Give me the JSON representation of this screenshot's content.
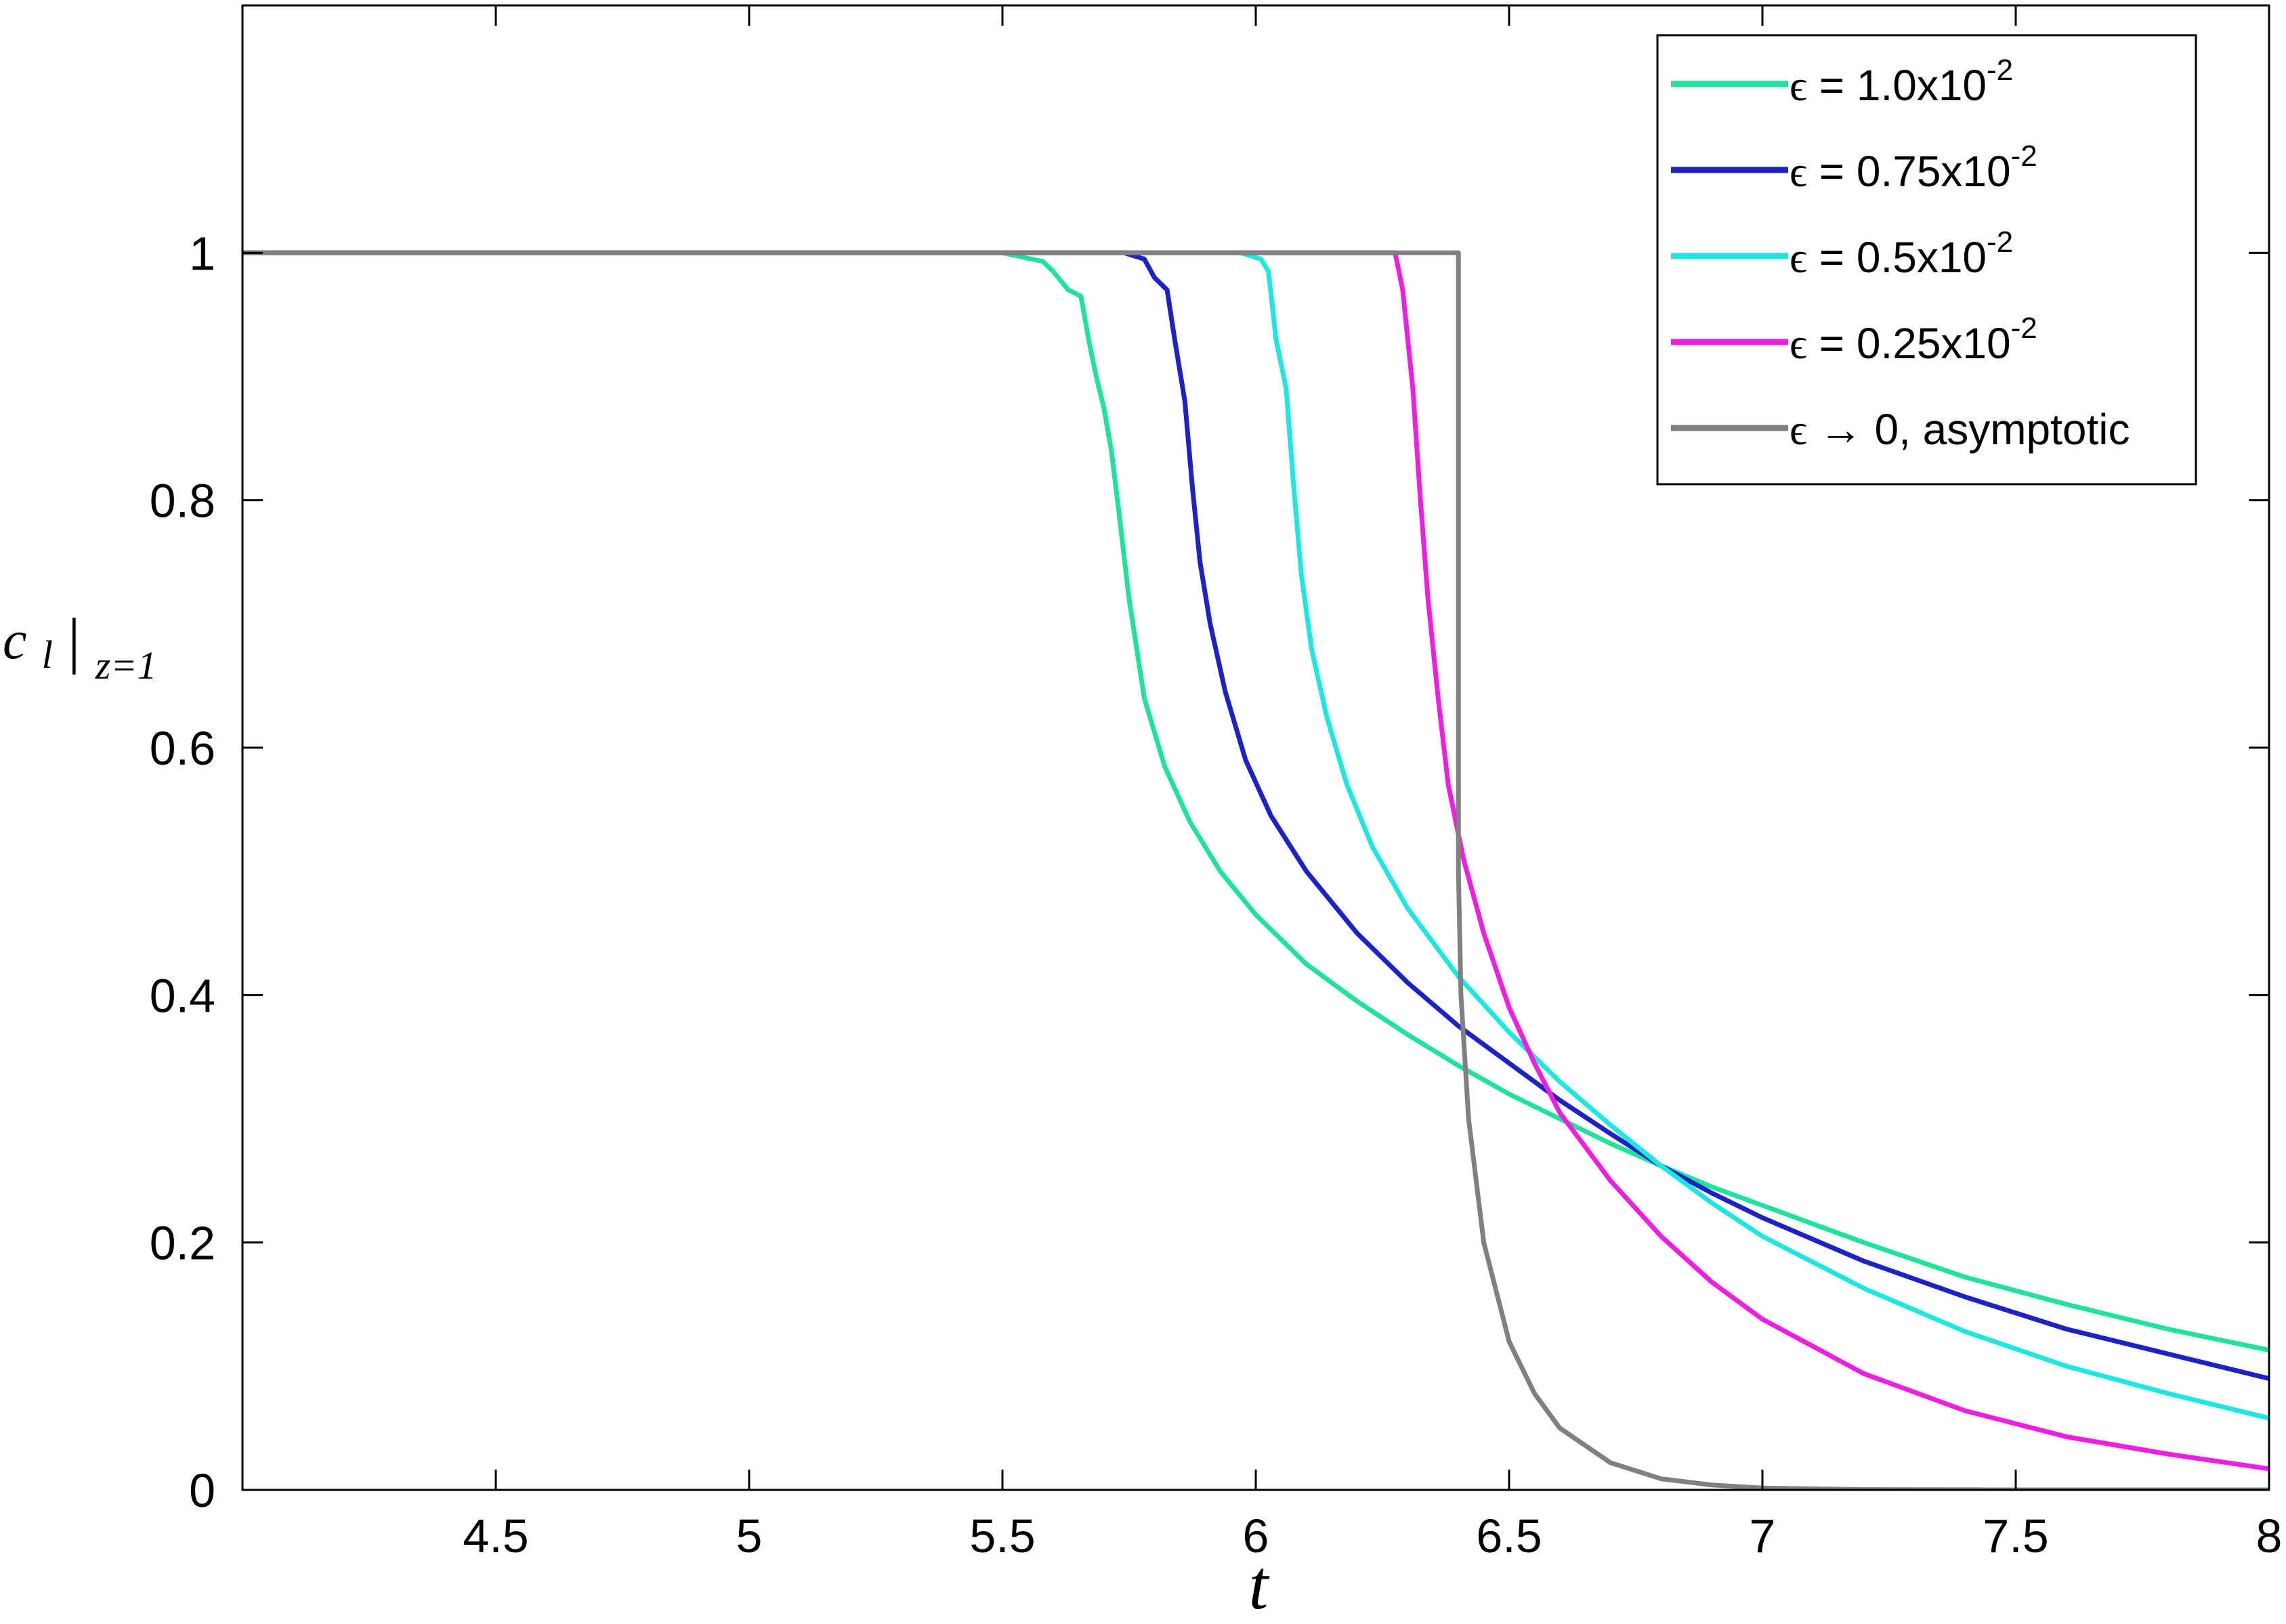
{
  "chart_data": {
    "type": "line",
    "xlabel": "t",
    "ylabel": {
      "main": "c",
      "sub": "l",
      "bar": "|",
      "eval": "z=1"
    },
    "xlim": [
      4.0,
      8.0
    ],
    "ylim": [
      0,
      1.2
    ],
    "xticks": [
      4.5,
      5,
      5.5,
      6,
      6.5,
      7,
      7.5,
      8
    ],
    "xtick_labels": [
      "4.5",
      "5",
      "5.5",
      "6",
      "6.5",
      "7",
      "7.5",
      "8"
    ],
    "yticks": [
      0,
      0.2,
      0.4,
      0.6,
      0.8,
      1
    ],
    "ytick_labels": [
      "0",
      "0.2",
      "0.4",
      "0.6",
      "0.8",
      "1"
    ],
    "grid": false,
    "legend_position": "top-right",
    "series": [
      {
        "name": "ϵ = 1.0x10-2",
        "legend": {
          "symbol": "ϵ",
          "text": " = 1.0x10",
          "exp": "-2"
        },
        "color": "#1fe39a",
        "points": [
          [
            4.0,
            1
          ],
          [
            5.5,
            1
          ],
          [
            5.58,
            0.993
          ],
          [
            5.6,
            0.985
          ],
          [
            5.63,
            0.97
          ],
          [
            5.655,
            0.965
          ],
          [
            5.67,
            0.93
          ],
          [
            5.685,
            0.9
          ],
          [
            5.7,
            0.875
          ],
          [
            5.715,
            0.84
          ],
          [
            5.73,
            0.79
          ],
          [
            5.75,
            0.72
          ],
          [
            5.78,
            0.64
          ],
          [
            5.82,
            0.585
          ],
          [
            5.87,
            0.54
          ],
          [
            5.93,
            0.5
          ],
          [
            6.0,
            0.465
          ],
          [
            6.1,
            0.425
          ],
          [
            6.2,
            0.395
          ],
          [
            6.3,
            0.368
          ],
          [
            6.4,
            0.343
          ],
          [
            6.5,
            0.32
          ],
          [
            6.6,
            0.3
          ],
          [
            6.7,
            0.28
          ],
          [
            6.8,
            0.262
          ],
          [
            6.9,
            0.245
          ],
          [
            7.0,
            0.23
          ],
          [
            7.2,
            0.2
          ],
          [
            7.4,
            0.172
          ],
          [
            7.6,
            0.15
          ],
          [
            7.8,
            0.13
          ],
          [
            8.0,
            0.113
          ]
        ]
      },
      {
        "name": "ϵ = 0.75x10-2",
        "legend": {
          "symbol": "ϵ",
          "text": " = 0.75x10",
          "exp": "-2"
        },
        "color": "#1c22c8",
        "points": [
          [
            4.0,
            1
          ],
          [
            5.74,
            1
          ],
          [
            5.78,
            0.995
          ],
          [
            5.8,
            0.98
          ],
          [
            5.825,
            0.97
          ],
          [
            5.84,
            0.93
          ],
          [
            5.86,
            0.88
          ],
          [
            5.875,
            0.81
          ],
          [
            5.89,
            0.75
          ],
          [
            5.91,
            0.7
          ],
          [
            5.94,
            0.645
          ],
          [
            5.98,
            0.59
          ],
          [
            6.03,
            0.545
          ],
          [
            6.1,
            0.5
          ],
          [
            6.2,
            0.45
          ],
          [
            6.3,
            0.41
          ],
          [
            6.4,
            0.375
          ],
          [
            6.5,
            0.345
          ],
          [
            6.6,
            0.315
          ],
          [
            6.7,
            0.288
          ],
          [
            6.8,
            0.262
          ],
          [
            6.9,
            0.24
          ],
          [
            7.0,
            0.22
          ],
          [
            7.2,
            0.185
          ],
          [
            7.4,
            0.156
          ],
          [
            7.6,
            0.13
          ],
          [
            7.8,
            0.11
          ],
          [
            8.0,
            0.09
          ]
        ]
      },
      {
        "name": "ϵ = 0.5x10-2",
        "legend": {
          "symbol": "ϵ",
          "text": " = 0.5x10",
          "exp": "-2"
        },
        "color": "#1ee6e0",
        "points": [
          [
            4.0,
            1
          ],
          [
            5.97,
            1
          ],
          [
            6.01,
            0.995
          ],
          [
            6.025,
            0.985
          ],
          [
            6.04,
            0.93
          ],
          [
            6.06,
            0.89
          ],
          [
            6.075,
            0.81
          ],
          [
            6.09,
            0.74
          ],
          [
            6.11,
            0.68
          ],
          [
            6.14,
            0.625
          ],
          [
            6.18,
            0.57
          ],
          [
            6.23,
            0.52
          ],
          [
            6.3,
            0.47
          ],
          [
            6.4,
            0.415
          ],
          [
            6.5,
            0.37
          ],
          [
            6.6,
            0.33
          ],
          [
            6.7,
            0.295
          ],
          [
            6.8,
            0.262
          ],
          [
            6.9,
            0.232
          ],
          [
            7.0,
            0.205
          ],
          [
            7.2,
            0.163
          ],
          [
            7.4,
            0.128
          ],
          [
            7.6,
            0.1
          ],
          [
            7.8,
            0.078
          ],
          [
            8.0,
            0.058
          ]
        ]
      },
      {
        "name": "ϵ = 0.25x10-2",
        "legend": {
          "symbol": "ϵ",
          "text": " = 0.25x10",
          "exp": "-2"
        },
        "color": "#f01ee0",
        "points": [
          [
            4.0,
            1
          ],
          [
            6.25,
            1
          ],
          [
            6.275,
            1.0
          ],
          [
            6.29,
            0.97
          ],
          [
            6.31,
            0.89
          ],
          [
            6.325,
            0.8
          ],
          [
            6.34,
            0.72
          ],
          [
            6.36,
            0.64
          ],
          [
            6.38,
            0.57
          ],
          [
            6.41,
            0.51
          ],
          [
            6.45,
            0.45
          ],
          [
            6.5,
            0.39
          ],
          [
            6.55,
            0.345
          ],
          [
            6.6,
            0.305
          ],
          [
            6.7,
            0.25
          ],
          [
            6.8,
            0.205
          ],
          [
            6.9,
            0.168
          ],
          [
            7.0,
            0.138
          ],
          [
            7.2,
            0.094
          ],
          [
            7.4,
            0.064
          ],
          [
            7.6,
            0.043
          ],
          [
            7.8,
            0.029
          ],
          [
            8.0,
            0.017
          ]
        ]
      },
      {
        "name": "ϵ → 0, asymptotic",
        "legend": {
          "symbol": "ϵ",
          "text": " → 0, asymptotic",
          "exp": ""
        },
        "color": "#808080",
        "points": [
          [
            4.0,
            1
          ],
          [
            6.4,
            1
          ],
          [
            6.4,
            0.5
          ],
          [
            6.405,
            0.4
          ],
          [
            6.42,
            0.3
          ],
          [
            6.45,
            0.2
          ],
          [
            6.5,
            0.12
          ],
          [
            6.55,
            0.078
          ],
          [
            6.6,
            0.05
          ],
          [
            6.7,
            0.022
          ],
          [
            6.8,
            0.009
          ],
          [
            6.9,
            0.004
          ],
          [
            7.0,
            0.0015
          ],
          [
            7.2,
            0.0003
          ],
          [
            7.5,
            0.0
          ],
          [
            8.0,
            0.0
          ]
        ]
      }
    ]
  }
}
